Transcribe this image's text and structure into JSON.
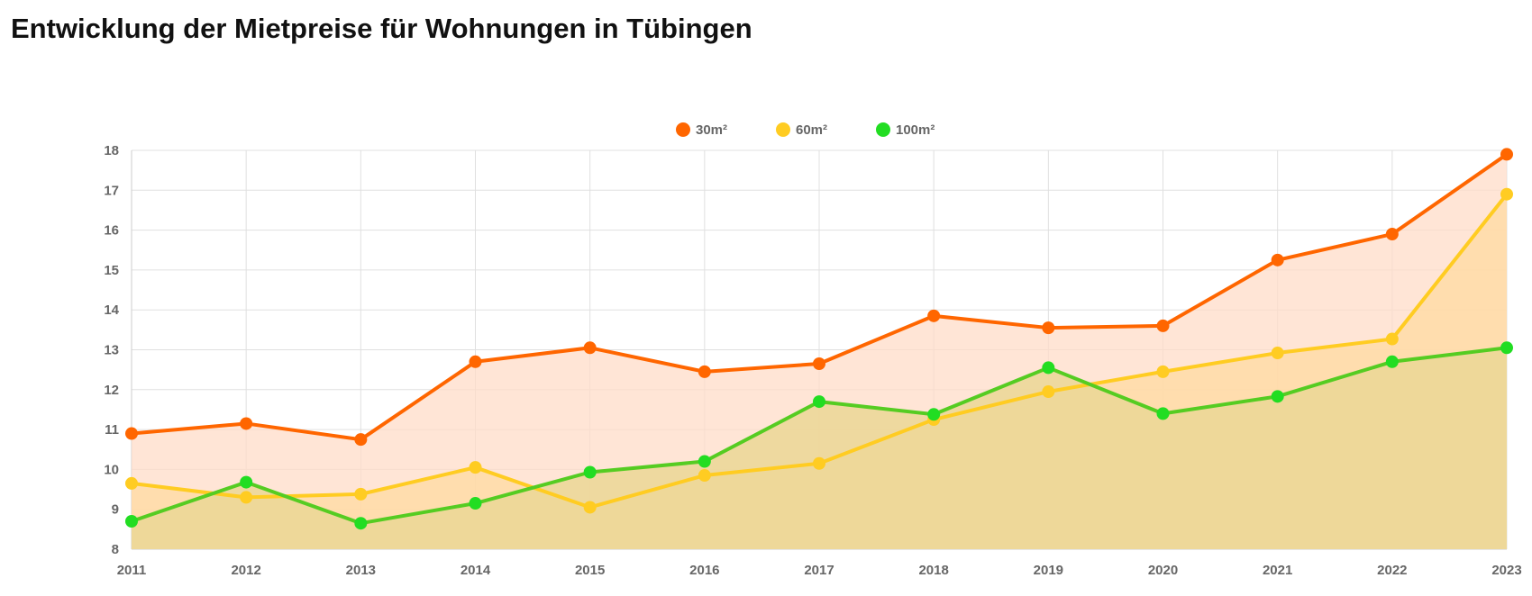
{
  "page": {
    "title": "Entwicklung der Mietpreise für Wohnungen in Tübingen"
  },
  "chart_data": {
    "type": "line",
    "title": "Entwicklung der Mietpreise für Wohnungen in Tübingen",
    "x": [
      "2011",
      "2012",
      "2013",
      "2014",
      "2015",
      "2016",
      "2017",
      "2018",
      "2019",
      "2020",
      "2021",
      "2022",
      "2023"
    ],
    "ylim": [
      8,
      18
    ],
    "yticks": [
      8,
      9,
      10,
      11,
      12,
      13,
      14,
      15,
      16,
      17,
      18
    ],
    "grid": true,
    "legend_position": "top-center",
    "series": [
      {
        "name": "30m²",
        "color": "#ff6600",
        "fill": "#ffdcc8",
        "values": [
          10.9,
          11.15,
          10.75,
          12.7,
          13.05,
          12.45,
          12.65,
          13.85,
          13.55,
          13.6,
          15.25,
          15.9,
          17.9
        ]
      },
      {
        "name": "60m²",
        "color": "#ffcc22",
        "fill": "#ffd9a0",
        "values": [
          9.65,
          9.3,
          9.38,
          10.05,
          9.05,
          9.85,
          10.15,
          11.25,
          11.95,
          12.45,
          12.92,
          13.27,
          16.9
        ]
      },
      {
        "name": "100m²",
        "color": "#55cc22",
        "marker": "#22dd22",
        "fill": "#ebd795",
        "values": [
          8.7,
          9.68,
          8.65,
          9.15,
          9.93,
          10.2,
          11.7,
          11.38,
          12.55,
          11.4,
          11.83,
          12.7,
          13.05
        ]
      }
    ]
  }
}
